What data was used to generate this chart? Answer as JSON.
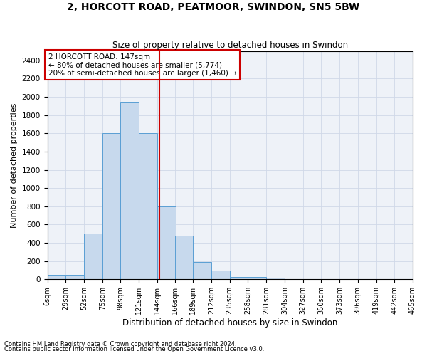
{
  "title": "2, HORCOTT ROAD, PEATMOOR, SWINDON, SN5 5BW",
  "subtitle": "Size of property relative to detached houses in Swindon",
  "xlabel": "Distribution of detached houses by size in Swindon",
  "ylabel": "Number of detached properties",
  "footnote1": "Contains HM Land Registry data © Crown copyright and database right 2024.",
  "footnote2": "Contains public sector information licensed under the Open Government Licence v3.0.",
  "bin_labels": [
    "6sqm",
    "29sqm",
    "52sqm",
    "75sqm",
    "98sqm",
    "121sqm",
    "144sqm",
    "166sqm",
    "189sqm",
    "212sqm",
    "235sqm",
    "258sqm",
    "281sqm",
    "304sqm",
    "327sqm",
    "350sqm",
    "373sqm",
    "396sqm",
    "419sqm",
    "442sqm",
    "465sqm"
  ],
  "bin_edges": [
    6,
    29,
    52,
    75,
    98,
    121,
    144,
    166,
    189,
    212,
    235,
    258,
    281,
    304,
    327,
    350,
    373,
    396,
    419,
    442,
    465
  ],
  "bar_heights": [
    50,
    50,
    500,
    1600,
    1950,
    1600,
    800,
    480,
    190,
    100,
    30,
    30,
    20,
    5,
    2,
    1,
    0,
    0,
    0,
    0
  ],
  "bar_color": "#c7d9ed",
  "bar_edge_color": "#5a9fd4",
  "property_line_x": 147,
  "property_line_color": "#cc0000",
  "ylim": [
    0,
    2500
  ],
  "yticks": [
    0,
    200,
    400,
    600,
    800,
    1000,
    1200,
    1400,
    1600,
    1800,
    2000,
    2200,
    2400
  ],
  "annotation_text": "2 HORCOTT ROAD: 147sqm\n← 80% of detached houses are smaller (5,774)\n20% of semi-detached houses are larger (1,460) →",
  "annotation_box_color": "#ffffff",
  "annotation_box_edge": "#cc0000",
  "grid_color": "#d0d8e8",
  "background_color": "#eef2f8"
}
